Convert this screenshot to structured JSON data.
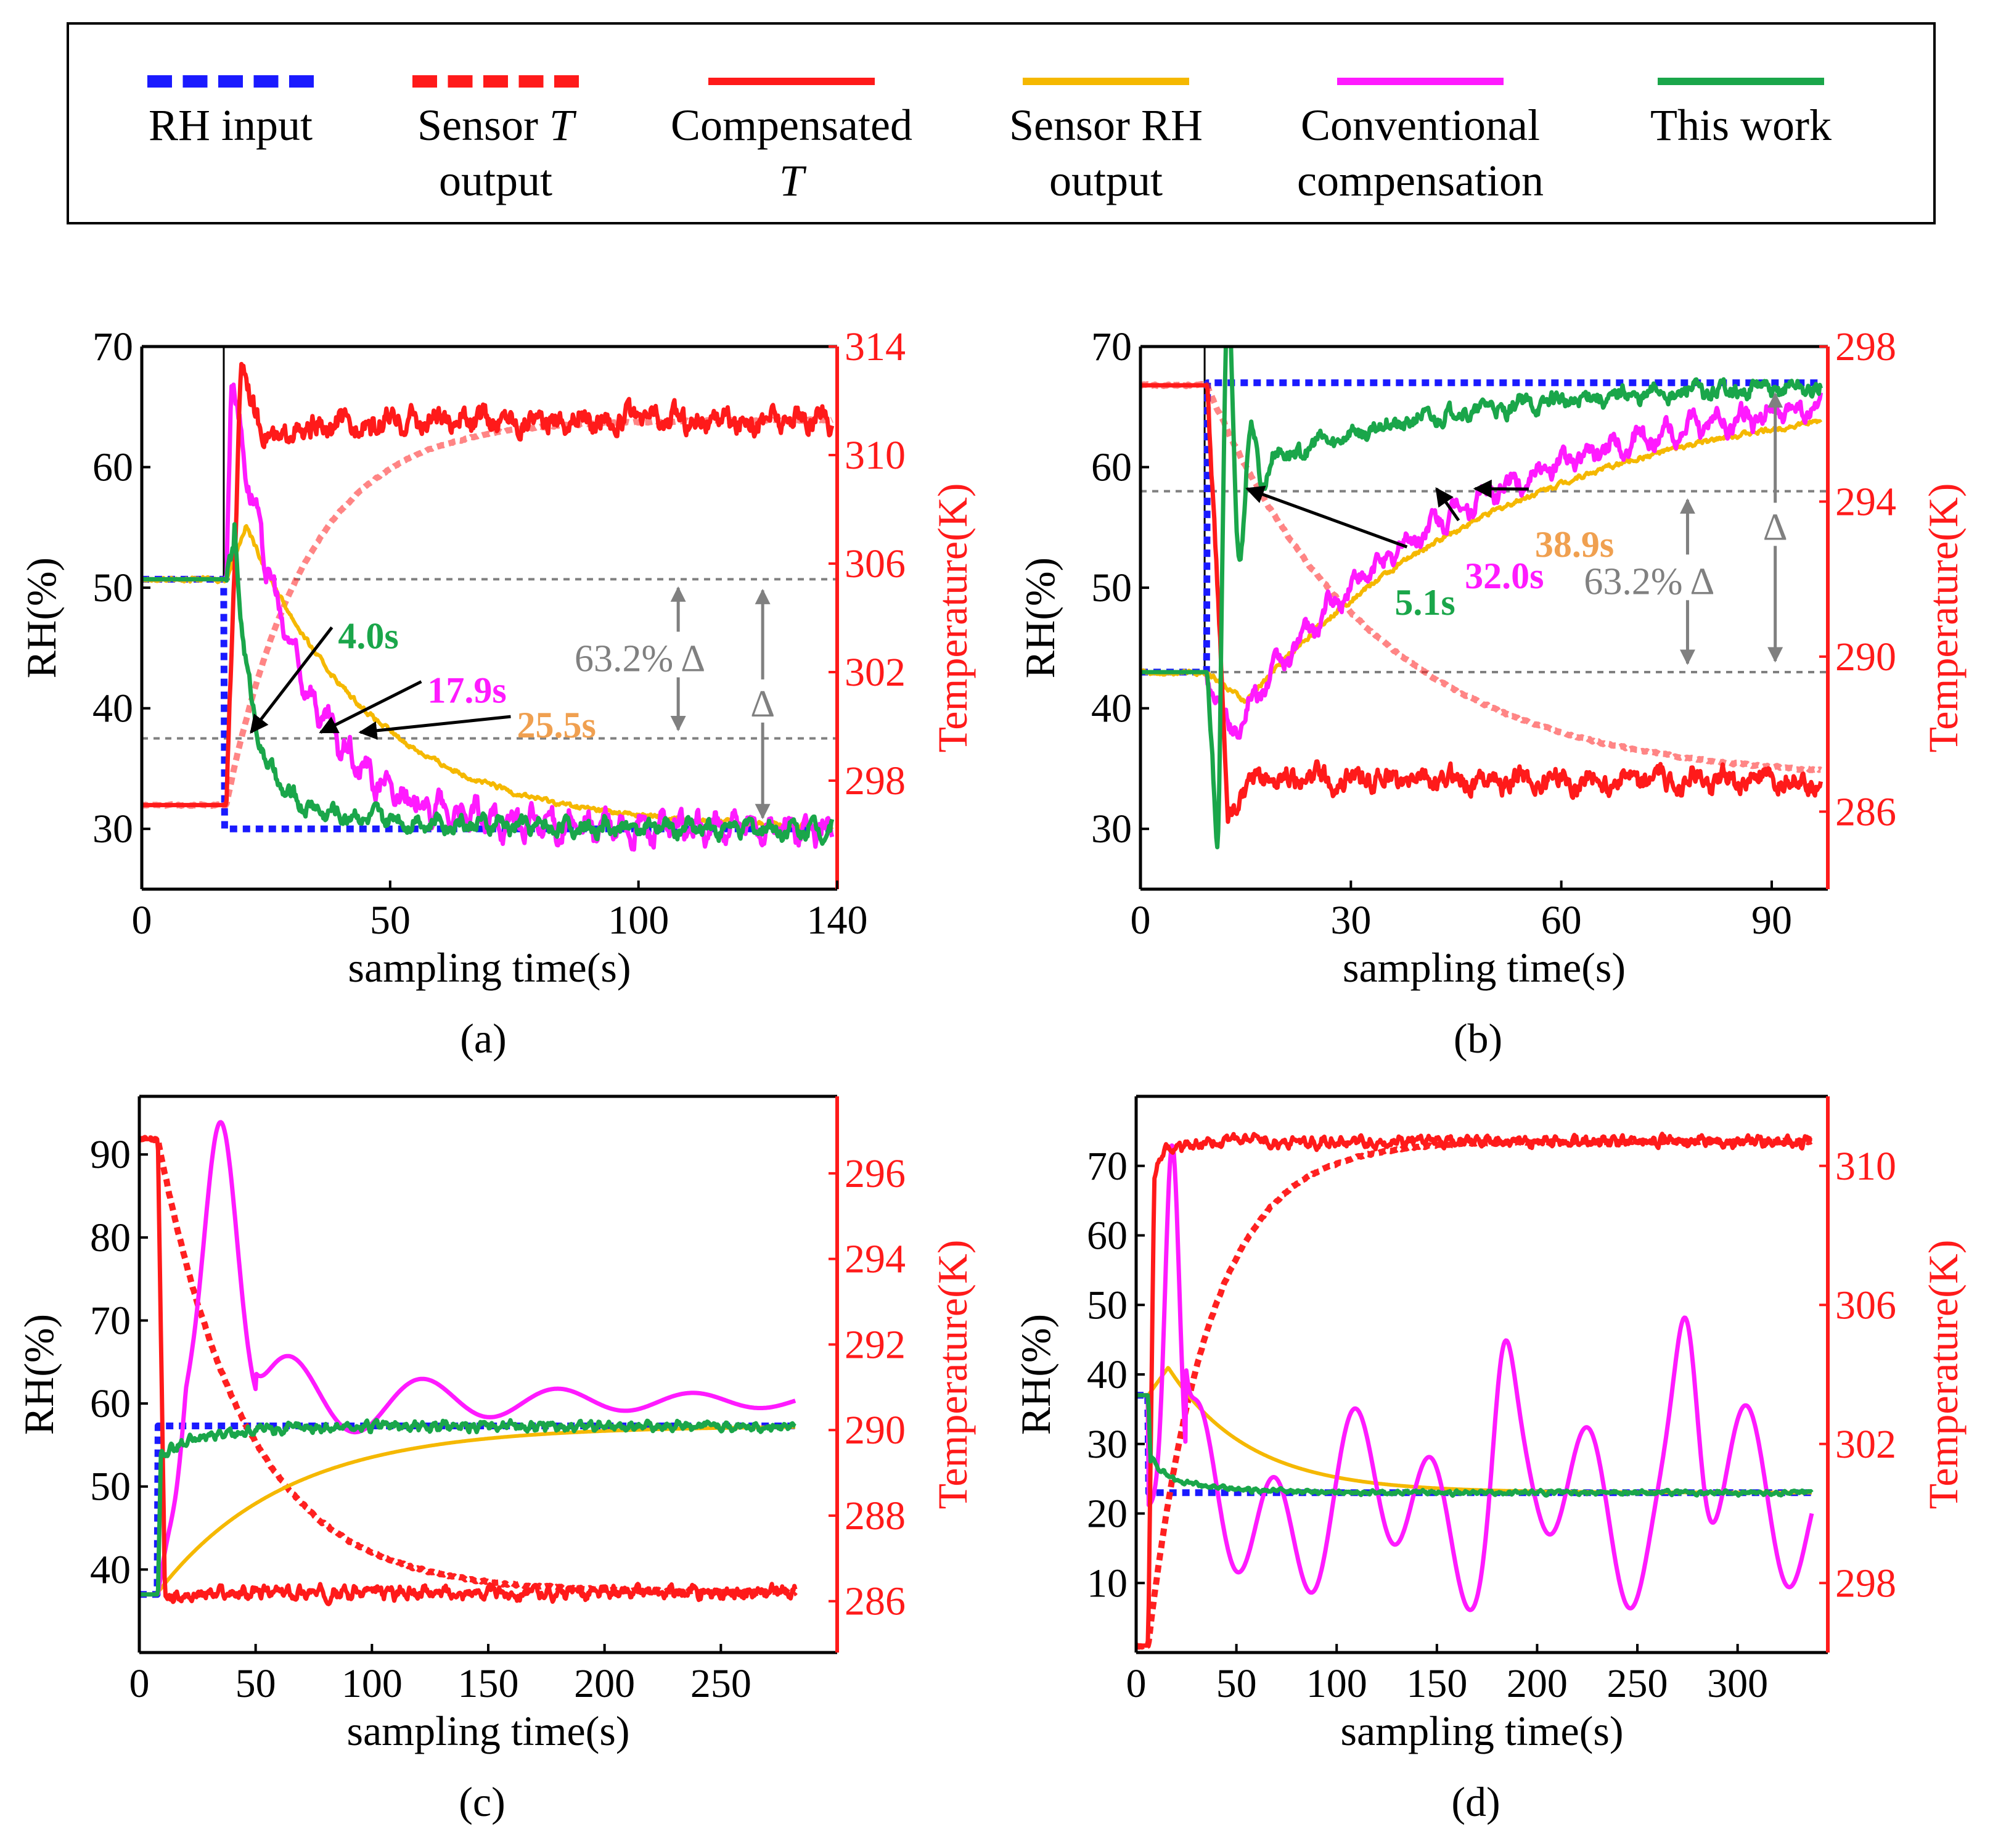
{
  "legend": {
    "items": [
      {
        "key": "rh_input",
        "lines": [
          "RH input"
        ],
        "color": "#1a1aff",
        "style": "dotted"
      },
      {
        "key": "sensor_t",
        "lines": [
          "Sensor |T|",
          "output"
        ],
        "color": "#ff1a1a",
        "style": "dotted"
      },
      {
        "key": "comp_t",
        "lines": [
          "Compensated",
          "|T|"
        ],
        "color": "#ff1a1a",
        "style": "solid"
      },
      {
        "key": "sensor_rh",
        "lines": [
          "Sensor RH",
          "output"
        ],
        "color": "#f5b800",
        "style": "solid"
      },
      {
        "key": "conv",
        "lines": [
          "Conventional",
          "compensation"
        ],
        "color": "#ff1aff",
        "style": "solid"
      },
      {
        "key": "work",
        "lines": [
          "This work"
        ],
        "color": "#1aa64a",
        "style": "solid"
      }
    ]
  },
  "colors": {
    "rh_input": "#1a1aff",
    "sensor_t": "#ff2020",
    "comp_t": "#ff1a1a",
    "sensor_rh": "#f5b800",
    "conv": "#ff1aff",
    "work": "#1aa64a",
    "guide": "#808080",
    "annot_work": "#1aa64a",
    "annot_conv": "#ff1aff",
    "annot_rh": "#f0a050"
  },
  "chart_data": [
    {
      "id": "a",
      "type": "line",
      "caption": "(a)",
      "xlabel": "sampling time(s)",
      "ylabel": "RH(%)",
      "y2label": "Temperature(K)",
      "xlim": [
        0,
        140
      ],
      "ylim": [
        25,
        70
      ],
      "y2lim": [
        294,
        314
      ],
      "xticks": [
        0,
        50,
        100,
        140
      ],
      "yticks": [
        30,
        40,
        50,
        60,
        70
      ],
      "y2ticks": [
        298,
        302,
        306,
        310,
        314
      ],
      "step_time": 17,
      "series": [
        {
          "name": "RH input",
          "key": "rh_input",
          "axis": "left",
          "shape": "step",
          "params": [
            16.5,
            50.7,
            30.0
          ]
        },
        {
          "name": "Sensor T output",
          "key": "sensor_t",
          "axis": "right",
          "shape": "exp",
          "params": [
            17,
            297.1,
            311.3,
            16
          ]
        },
        {
          "name": "Compensated T",
          "key": "comp_t",
          "axis": "right",
          "shape": "comp",
          "params": [
            17,
            297.1,
            311.3,
            313.4,
            310.5,
            0.4
          ]
        },
        {
          "name": "Sensor RH output",
          "key": "sensor_rh",
          "axis": "left",
          "shape": "hump",
          "params": [
            17,
            50.7,
            30.0,
            55.2,
            21,
            25.5,
            0.1
          ]
        },
        {
          "name": "Conventional compensation",
          "key": "conv",
          "axis": "left",
          "shape": "spike",
          "params": [
            17,
            50.7,
            30.0,
            68.0,
            18,
            13.0,
            0.9
          ]
        },
        {
          "name": "This work",
          "key": "work",
          "axis": "left",
          "shape": "fast",
          "params": [
            17,
            50.7,
            30.0,
            53.0,
            3.5,
            0.8
          ]
        }
      ],
      "guides": [
        {
          "axis": "left",
          "y": 50.7,
          "x0": 0,
          "x1": 140
        },
        {
          "axis": "left",
          "y": 37.5,
          "x0": 0,
          "x1": 140
        }
      ],
      "annotations": [
        {
          "text": "4.0s",
          "key": "annot_work",
          "tx": 42,
          "ty": 46.2,
          "ax": 21,
          "ay": 37.6
        },
        {
          "text": "17.9s",
          "key": "annot_conv",
          "tx": 60,
          "ty": 41.7,
          "ax": 35,
          "ay": 37.6
        },
        {
          "text": "25.5s",
          "key": "annot_rh",
          "tx": 78,
          "ty": 38.8,
          "ax": 43,
          "ay": 37.6
        }
      ],
      "delta_text": "63.2% Δ",
      "delta_label": "Δ"
    },
    {
      "id": "b",
      "type": "line",
      "caption": "(b)",
      "xlabel": "sampling time(s)",
      "ylabel": "RH(%)",
      "y2label": "Temperature(K)",
      "xlim": [
        0,
        98
      ],
      "ylim": [
        25,
        70
      ],
      "y2lim": [
        284,
        298
      ],
      "xticks": [
        0,
        30,
        60,
        90
      ],
      "yticks": [
        30,
        40,
        50,
        60,
        70
      ],
      "y2ticks": [
        286,
        290,
        294,
        298
      ],
      "step_time": 9.5,
      "series": [
        {
          "name": "RH input",
          "key": "rh_input",
          "axis": "left",
          "shape": "step",
          "params": [
            9.5,
            43.0,
            67.0
          ]
        },
        {
          "name": "Sensor T output",
          "key": "sensor_t",
          "axis": "right",
          "shape": "exp",
          "params": [
            9.5,
            297.0,
            286.8,
            24
          ]
        },
        {
          "name": "Compensated T",
          "key": "comp_t",
          "axis": "right",
          "shape": "comp",
          "params": [
            9.5,
            297.0,
            286.8,
            286.0,
            286.9,
            0.25
          ]
        },
        {
          "name": "Sensor RH output",
          "key": "sensor_rh",
          "axis": "left",
          "shape": "hump",
          "params": [
            9.5,
            43.0,
            67.0,
            40.5,
            15,
            38.9,
            0.1
          ]
        },
        {
          "name": "Conventional compensation",
          "key": "conv",
          "axis": "left",
          "shape": "spike",
          "params": [
            9.5,
            43.0,
            67.0,
            38.0,
            13,
            32.0,
            0.7
          ]
        },
        {
          "name": "This work",
          "key": "work",
          "axis": "left",
          "shape": "osc",
          "params": [
            9.5,
            43.0,
            67.0,
            27.5,
            5.1,
            0.8
          ]
        }
      ],
      "guides": [
        {
          "axis": "left",
          "y": 58.0,
          "x0": 0,
          "x1": 98
        },
        {
          "axis": "left",
          "y": 43.0,
          "x0": 0,
          "x1": 98
        }
      ],
      "annotations": [
        {
          "text": "5.1s",
          "key": "annot_work",
          "tx": 38,
          "ty": 49.8,
          "ax": 14.5,
          "ay": 57.8
        },
        {
          "text": "32.0s",
          "key": "annot_conv",
          "tx": 48,
          "ty": 52.0,
          "ax": 41.5,
          "ay": 57.8
        },
        {
          "text": "38.9s",
          "key": "annot_rh",
          "tx": 58,
          "ty": 54.6,
          "ax": 47,
          "ay": 57.8
        }
      ],
      "delta_text": "63.2% Δ",
      "delta_label": "Δ"
    },
    {
      "id": "c",
      "type": "line",
      "caption": "(c)",
      "xlabel": "sampling time(s)",
      "ylabel": "RH(%)",
      "y2label": "Temperature(K)",
      "xlim": [
        0,
        300
      ],
      "ylim": [
        30,
        97
      ],
      "y2lim": [
        284.8,
        297.8
      ],
      "xticks": [
        0,
        50,
        100,
        150,
        200,
        250
      ],
      "yticks": [
        40,
        50,
        60,
        70,
        80,
        90
      ],
      "y2ticks": [
        286,
        288,
        290,
        292,
        294,
        296
      ],
      "step_time": 8,
      "series": [
        {
          "name": "RH input",
          "key": "rh_input",
          "axis": "left",
          "shape": "step",
          "params": [
            8,
            37.0,
            57.3
          ]
        },
        {
          "name": "Sensor T output",
          "key": "sensor_t",
          "axis": "right",
          "shape": "exp",
          "params": [
            8,
            296.8,
            286.2,
            38
          ]
        },
        {
          "name": "Compensated T",
          "key": "comp_t",
          "axis": "right",
          "shape": "comp",
          "params": [
            8,
            296.8,
            286.2,
            286.1,
            286.1,
            0.12
          ]
        },
        {
          "name": "Sensor RH output",
          "key": "sensor_rh",
          "axis": "left",
          "shape": "hump",
          "params": [
            8,
            37.0,
            57.3,
            36.5,
            6,
            55,
            0.0
          ]
        },
        {
          "name": "Conventional compensation",
          "key": "conv",
          "axis": "left",
          "shape": "wild",
          "params": [
            8,
            37.0,
            57.3,
            1
          ]
        },
        {
          "name": "This work",
          "key": "work",
          "axis": "left",
          "shape": "fast",
          "params": [
            8,
            37.0,
            57.3,
            56.5,
            7,
            0.6
          ]
        }
      ],
      "guides": [],
      "annotations": []
    },
    {
      "id": "d",
      "type": "line",
      "caption": "(d)",
      "xlabel": "sampling time(s)",
      "ylabel": "RH(%)",
      "y2label": "Temperature(K)",
      "xlim": [
        0,
        345
      ],
      "ylim": [
        0,
        80
      ],
      "y2lim": [
        296,
        312
      ],
      "xticks": [
        0,
        50,
        100,
        150,
        200,
        250,
        300
      ],
      "yticks": [
        10,
        20,
        30,
        40,
        50,
        60,
        70
      ],
      "y2ticks": [
        298,
        302,
        306,
        310
      ],
      "step_time": 6,
      "series": [
        {
          "name": "RH input",
          "key": "rh_input",
          "axis": "left",
          "shape": "step",
          "params": [
            6,
            37.0,
            23.0
          ]
        },
        {
          "name": "Sensor T output",
          "key": "sensor_t",
          "axis": "right",
          "shape": "exp",
          "params": [
            6,
            296.2,
            310.7,
            30
          ]
        },
        {
          "name": "Compensated T",
          "key": "comp_t",
          "axis": "right",
          "shape": "comp",
          "params": [
            6,
            296.2,
            310.7,
            309.7,
            310.4,
            0.12
          ]
        },
        {
          "name": "Sensor RH output",
          "key": "sensor_rh",
          "axis": "left",
          "shape": "hump",
          "params": [
            6,
            37.0,
            23.0,
            41.0,
            16,
            40,
            0.0
          ]
        },
        {
          "name": "Conventional compensation",
          "key": "conv",
          "axis": "left",
          "shape": "wild",
          "params": [
            6,
            37.0,
            23.0,
            2
          ]
        },
        {
          "name": "This work",
          "key": "work",
          "axis": "left",
          "shape": "fast",
          "params": [
            6,
            37.0,
            23.0,
            25.5,
            5,
            0.3
          ]
        }
      ],
      "guides": [],
      "annotations": []
    }
  ]
}
